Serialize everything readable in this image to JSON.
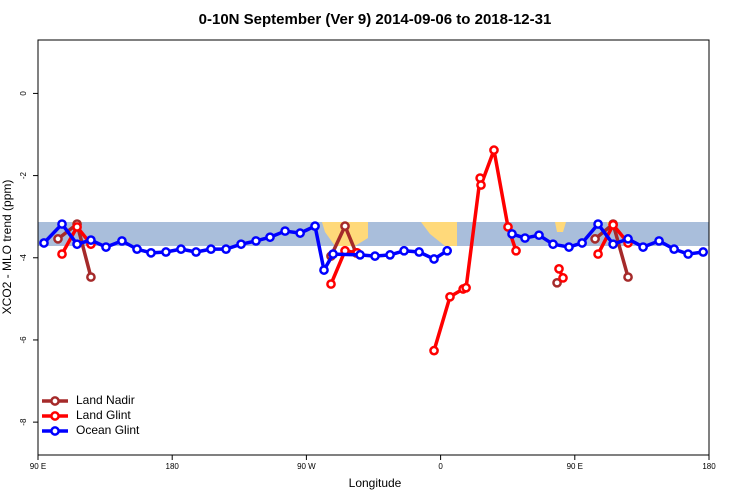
{
  "chart_data": {
    "type": "line",
    "title": "0-10N September (Ver 9)   2014-09-06 to 2018-12-31",
    "xlabel": "Longitude",
    "ylabel": "XCO2 - MLO trend (ppm)",
    "xlim": [
      90,
      540
    ],
    "ylim": [
      -8.8,
      1.3
    ],
    "xticks": [
      {
        "value": 90,
        "label": "90 E"
      },
      180,
      {
        "value": 270,
        "label": "90 W"
      },
      {
        "value": 360,
        "label": "0"
      },
      {
        "value": 450,
        "label": "90 E"
      },
      {
        "value": 540,
        "label": "180"
      }
    ],
    "yticks": [
      0,
      -2,
      -4,
      -6,
      -8
    ],
    "legend": "bottom-left",
    "series": [
      {
        "name": "Land Nadir",
        "color": "#a52a2a",
        "x": [
          103.4,
          116.2,
          125.5,
          null,
          286.5,
          295.9,
          303.3,
          null,
          438.1,
          null,
          463.6,
          475.7,
          485.7
        ],
        "values": [
          -3.54,
          -3.18,
          -4.47,
          null,
          -3.96,
          -3.23,
          -3.88,
          null,
          -4.61,
          null,
          -3.54,
          -3.18,
          -4.47
        ]
      },
      {
        "name": "Land Glint",
        "color": "#ff0000",
        "x": [
          106.1,
          116.2,
          125.5,
          null,
          286.5,
          295.9,
          304.0,
          null,
          355.6,
          366.3,
          375.1,
          377.1,
          386.5,
          387.1,
          395.8,
          405.2,
          410.6,
          null,
          439.4,
          442.1,
          null,
          465.6,
          475.7,
          485.7
        ],
        "values": [
          -3.91,
          -3.25,
          -3.67,
          null,
          -4.64,
          -3.83,
          -3.88,
          null,
          -6.26,
          -4.95,
          -4.76,
          -4.73,
          -2.06,
          -2.23,
          -1.38,
          -3.25,
          -3.83,
          null,
          -4.27,
          -4.49,
          null,
          -3.91,
          -3.2,
          -3.64
        ]
      },
      {
        "name": "Ocean Glint",
        "color": "#0000ff",
        "x": [
          94.0,
          106.1,
          116.2,
          125.5,
          135.6,
          146.3,
          156.4,
          165.8,
          175.8,
          185.9,
          196.0,
          206.0,
          216.1,
          226.2,
          236.2,
          245.6,
          255.7,
          265.8,
          275.8,
          281.8,
          287.9,
          306.0,
          316.0,
          326.1,
          335.5,
          345.6,
          355.6,
          364.4,
          null,
          407.9,
          416.6,
          426.0,
          435.4,
          446.1,
          454.9,
          465.6,
          475.7,
          485.7,
          495.8,
          506.5,
          516.6,
          526.0,
          536.1
        ],
        "values": [
          -3.64,
          -3.18,
          -3.67,
          -3.57,
          -3.74,
          -3.59,
          -3.79,
          -3.88,
          -3.86,
          -3.79,
          -3.86,
          -3.79,
          -3.79,
          -3.67,
          -3.59,
          -3.5,
          -3.35,
          -3.4,
          -3.23,
          -4.3,
          -3.91,
          -3.93,
          -3.96,
          -3.93,
          -3.83,
          -3.86,
          -4.03,
          -3.83,
          null,
          -3.42,
          -3.52,
          -3.45,
          -3.67,
          -3.74,
          -3.64,
          -3.18,
          -3.67,
          -3.54,
          -3.74,
          -3.59,
          -3.79,
          -3.91,
          -3.86
        ]
      }
    ]
  }
}
